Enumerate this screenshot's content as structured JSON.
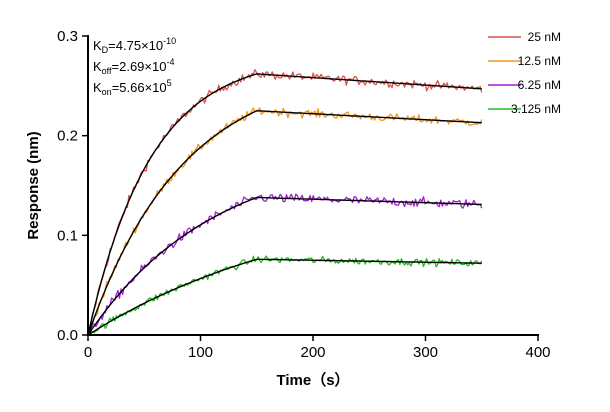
{
  "chart_data": {
    "type": "line",
    "title": "",
    "xlabel": "Time（s）",
    "ylabel": "Response (nm)",
    "xlim": [
      0,
      400
    ],
    "ylim": [
      0,
      0.3
    ],
    "xticks": [
      0,
      100,
      200,
      300,
      400
    ],
    "yticks": [
      0.0,
      0.1,
      0.2,
      0.3
    ],
    "xtick_labels": [
      "0",
      "100",
      "200",
      "300",
      "400"
    ],
    "ytick_labels": [
      "0.0",
      "0.1",
      "0.2",
      "0.3"
    ],
    "association_end": 150,
    "x_end": 350,
    "annotations": {
      "kd": {
        "label": "K",
        "sub": "D",
        "text": "=4.75×10",
        "exp": "-10"
      },
      "koff": {
        "label": "K",
        "sub": "off",
        "text": "=2.69×10",
        "exp": "-4"
      },
      "kon": {
        "label": "K",
        "sub": "on",
        "text": "=5.66×10",
        "exp": "5"
      }
    },
    "legend_position": "top-right",
    "series": [
      {
        "name": "25 nM",
        "color": "#d9534f",
        "plateau": 0.262,
        "end": 0.247,
        "rate": 0.018,
        "noise": 0.0075
      },
      {
        "name": "12.5 nM",
        "color": "#f0961e",
        "plateau": 0.225,
        "end": 0.213,
        "rate": 0.012,
        "noise": 0.007
      },
      {
        "name": "6.25 nM",
        "color": "#a020d0",
        "plateau": 0.138,
        "end": 0.131,
        "rate": 0.009,
        "noise": 0.008
      },
      {
        "name": "3.125 nM",
        "color": "#22bb22",
        "plateau": 0.076,
        "end": 0.072,
        "rate": 0.005,
        "noise": 0.006
      }
    ]
  }
}
